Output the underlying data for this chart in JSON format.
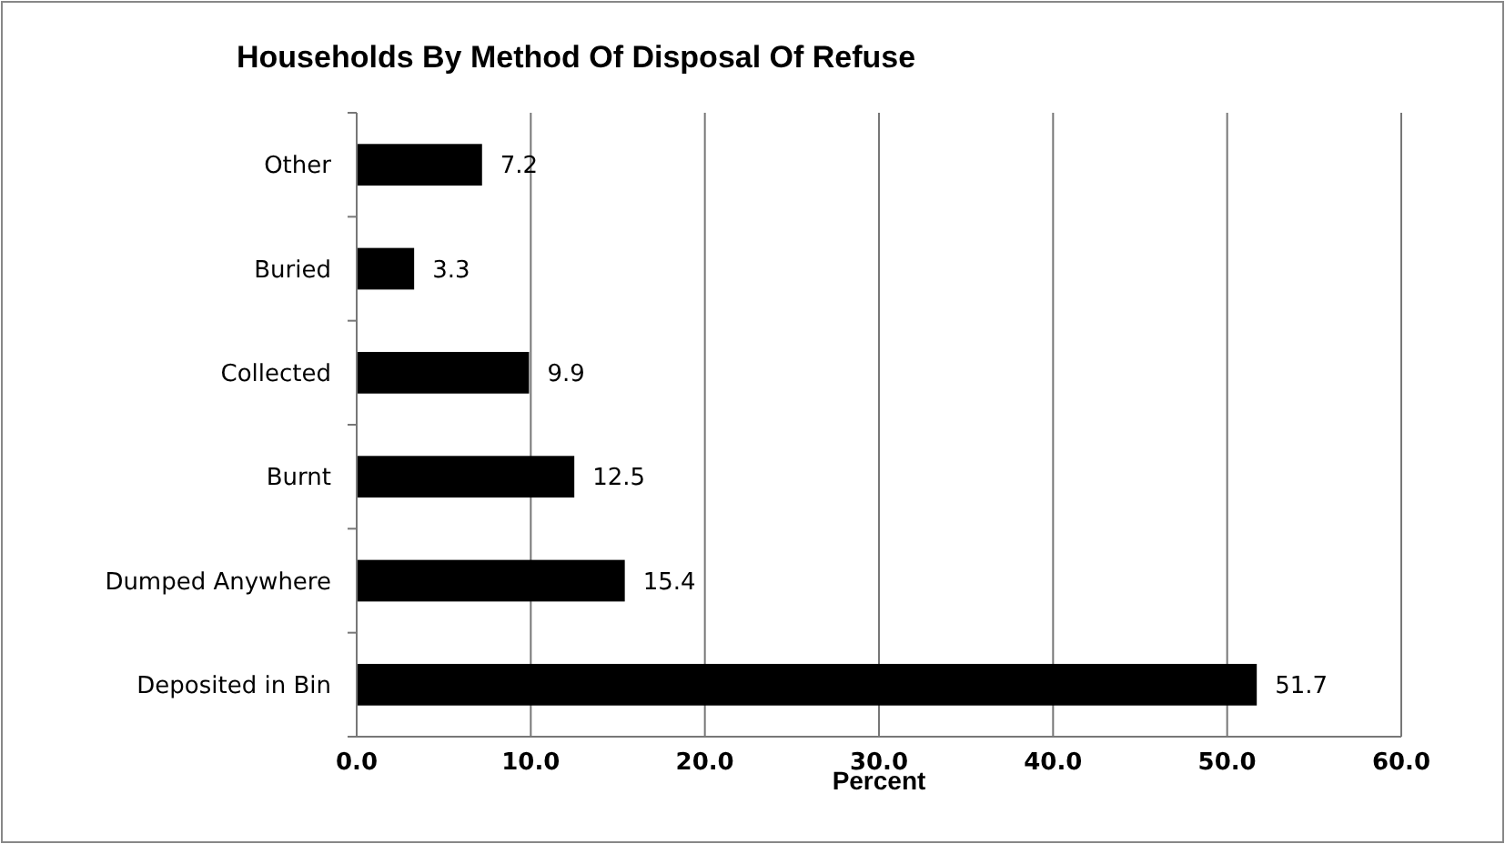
{
  "chart_data": {
    "type": "bar",
    "orientation": "horizontal",
    "title": "Households By Method Of  Disposal Of Refuse",
    "xlabel": "Percent",
    "categories": [
      "Other",
      "Buried",
      "Collected",
      "Burnt",
      "Dumped Anywhere",
      "Deposited in Bin"
    ],
    "values": [
      7.2,
      3.3,
      9.9,
      12.5,
      15.4,
      51.7
    ],
    "color": "#000000",
    "data_labels": true,
    "grid": "x",
    "xlim": [
      0,
      60
    ],
    "xticks": [
      {
        "value": 0,
        "label": "0.0"
      },
      {
        "value": 10,
        "label": "10.0"
      },
      {
        "value": 20,
        "label": "20.0"
      },
      {
        "value": 30,
        "label": "30.0"
      },
      {
        "value": 40,
        "label": "40.0"
      },
      {
        "value": 50,
        "label": "50.0"
      },
      {
        "value": 60,
        "label": "60.0"
      }
    ]
  }
}
